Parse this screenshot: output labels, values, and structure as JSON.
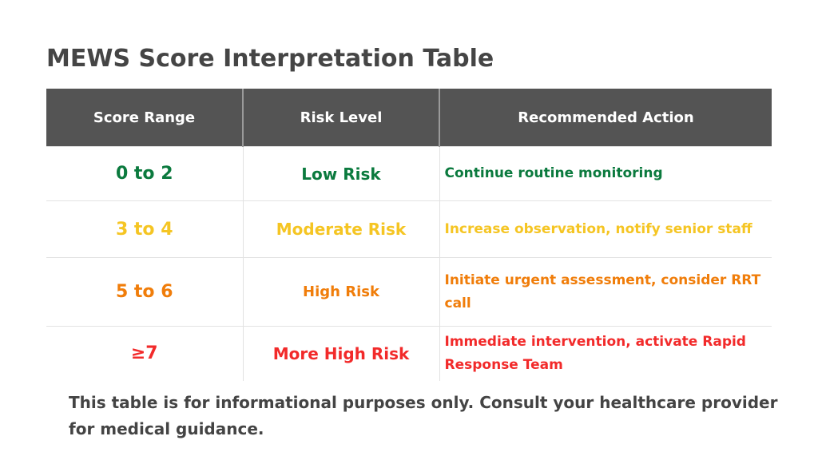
{
  "title": "MEWS Score Interpretation Table",
  "headers": [
    "Score Range",
    "Risk Level",
    "Recommended Action"
  ],
  "rows": [
    {
      "score": "0 to 2",
      "risk": "Low Risk",
      "action": "Continue routine monitoring",
      "color": "#0b7a3e"
    },
    {
      "score": "3 to 4",
      "risk": "Moderate Risk",
      "action": "Increase observation, notify senior staff",
      "color": "#f5c523"
    },
    {
      "score": "5 to 6",
      "risk": "High Risk",
      "action": "Initiate urgent assessment, consider RRT call",
      "color": "#f07d0a"
    },
    {
      "score": "≥7",
      "risk": "More High Risk",
      "action": "Immediate intervention, activate Rapid Response Team",
      "color": "#f22a2a"
    }
  ],
  "footer": "This table is for informational purposes only. Consult your healthcare provider for medical guidance."
}
